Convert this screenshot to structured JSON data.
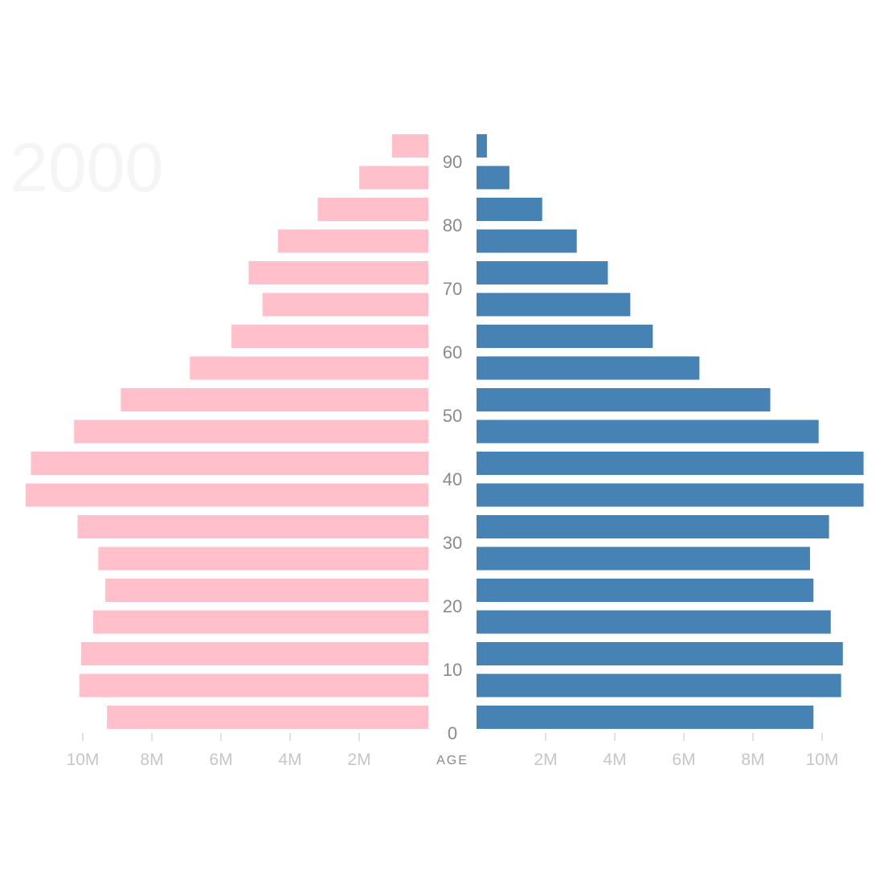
{
  "chart_data": {
    "type": "bar",
    "year": "2000",
    "ylabel": "AGE",
    "age_ticks": [
      "0",
      "10",
      "20",
      "30",
      "40",
      "50",
      "60",
      "70",
      "80",
      "90"
    ],
    "x_tick_labels": [
      "2M",
      "4M",
      "6M",
      "8M",
      "10M"
    ],
    "xlim": [
      0,
      11.2
    ],
    "categories": [
      "0",
      "5",
      "10",
      "15",
      "20",
      "25",
      "30",
      "35",
      "40",
      "45",
      "50",
      "55",
      "60",
      "65",
      "70",
      "75",
      "80",
      "85",
      "90"
    ],
    "series": [
      {
        "side": "left",
        "color": "#ffc0cb",
        "values": [
          9.3,
          10.1,
          10.05,
          9.7,
          9.35,
          9.55,
          10.15,
          11.65,
          11.5,
          10.25,
          8.9,
          6.9,
          5.7,
          4.8,
          5.2,
          4.35,
          3.2,
          2.0,
          1.05
        ]
      },
      {
        "side": "right",
        "color": "#4682b4",
        "values": [
          9.75,
          10.55,
          10.6,
          10.25,
          9.75,
          9.65,
          10.2,
          11.2,
          11.2,
          9.9,
          8.5,
          6.45,
          5.1,
          4.45,
          3.8,
          2.9,
          1.9,
          0.95,
          0.3
        ]
      }
    ]
  }
}
